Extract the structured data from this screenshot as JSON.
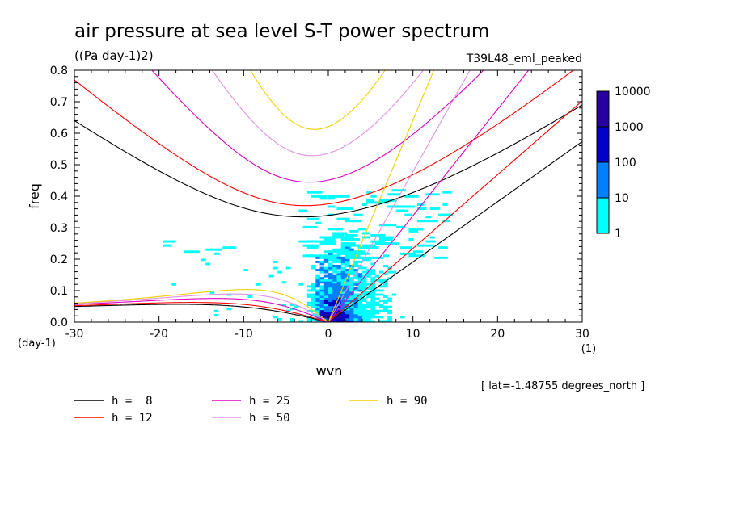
{
  "title": "air pressure at sea level S-T power spectrum",
  "units": "((Pa day-1)2)",
  "experiment": "T39L48_eml_peaked",
  "lat_note": "[ lat=-1.48755 degrees_north ]",
  "chart_data": {
    "type": "heatmap",
    "xlabel": "wvn",
    "ylabel": "freq",
    "x_unit": "(1)",
    "y_unit": "(day-1)",
    "xlim": [
      -30,
      30
    ],
    "ylim": [
      0,
      0.8
    ],
    "x_ticks": [
      "-30",
      "-20",
      "-10",
      "0",
      "10",
      "20",
      "30"
    ],
    "y_ticks": [
      "0.0",
      "0.1",
      "0.2",
      "0.3",
      "0.4",
      "0.5",
      "0.6",
      "0.7",
      "0.8"
    ],
    "colorbar": {
      "levels": [
        "1",
        "10",
        "100",
        "1000",
        "10000"
      ],
      "colors": [
        "#00ffff",
        "#0080ff",
        "#0000c8",
        "#2800a0"
      ]
    },
    "dispersion_curves": [
      {
        "label": "h =  8",
        "h": 8,
        "color": "#000000"
      },
      {
        "label": "h = 12",
        "h": 12,
        "color": "#ff0000"
      },
      {
        "label": "h = 25",
        "h": 25,
        "color": "#e000c0"
      },
      {
        "label": "h = 50",
        "h": 50,
        "color": "#e090e0"
      },
      {
        "label": "h = 90",
        "h": 90,
        "color": "#f0d000"
      }
    ]
  }
}
